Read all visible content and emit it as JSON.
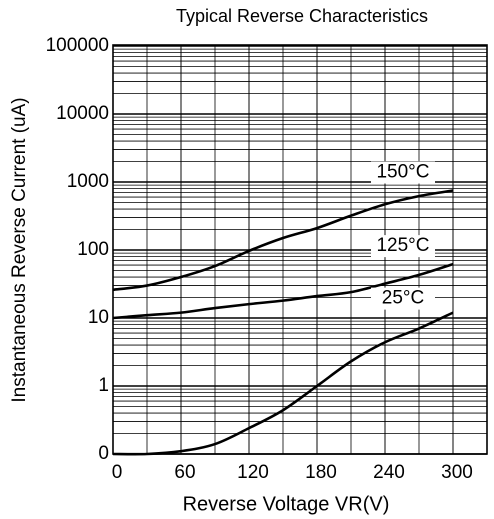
{
  "chart_data": {
    "type": "line",
    "title": "Typical Reverse Characteristics",
    "x_label": "Reverse Voltage VR(V)",
    "y_label": "Instantaneous Reverse Current (uA)",
    "log_y": true,
    "grid": true,
    "xlim": [
      0,
      330
    ],
    "xticks": [
      0,
      60,
      120,
      180,
      240,
      300
    ],
    "ylim": [
      0.1,
      100000
    ],
    "yticks": [
      {
        "value": 0.1,
        "label": "0"
      },
      1,
      10,
      100,
      1000,
      10000,
      100000
    ],
    "x": [
      0,
      30,
      60,
      90,
      120,
      150,
      180,
      210,
      240,
      270,
      300
    ],
    "series": [
      {
        "name": "150°C",
        "color": "#000000",
        "values": [
          26,
          30,
          40,
          58,
          97,
          150,
          210,
          320,
          470,
          620,
          750
        ]
      },
      {
        "name": "125°C",
        "color": "#000000",
        "values": [
          10,
          11,
          12,
          14,
          16,
          18,
          21,
          24,
          32,
          43,
          62
        ]
      },
      {
        "name": "25°C",
        "color": "#000000",
        "values": [
          0.1,
          0.1,
          0.11,
          0.14,
          0.24,
          0.44,
          1,
          2.3,
          4.4,
          7,
          12
        ]
      }
    ]
  }
}
